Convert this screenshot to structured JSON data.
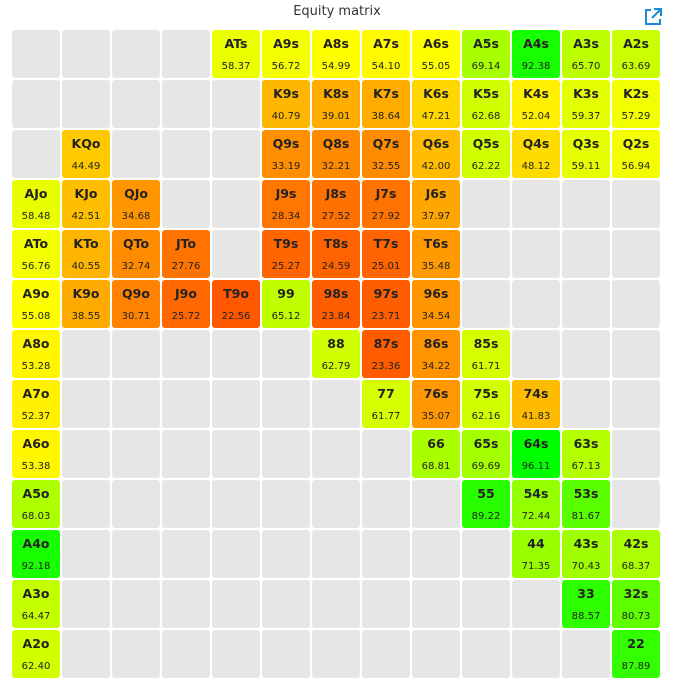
{
  "title": "Equity matrix",
  "export_icon": "external-link-icon",
  "colors": {
    "empty": "#e6e6e6",
    "text": "#222222"
  },
  "chart_data": {
    "type": "heatmap",
    "title": "Equity matrix",
    "ranks": [
      "A",
      "K",
      "Q",
      "J",
      "T",
      "9",
      "8",
      "7",
      "6",
      "5",
      "4",
      "3",
      "2"
    ],
    "cells": [
      {
        "hand": "ATs",
        "row": 0,
        "col": 4,
        "equity": 58.37
      },
      {
        "hand": "A9s",
        "row": 0,
        "col": 5,
        "equity": 56.72
      },
      {
        "hand": "A8s",
        "row": 0,
        "col": 6,
        "equity": 54.99
      },
      {
        "hand": "A7s",
        "row": 0,
        "col": 7,
        "equity": 54.1
      },
      {
        "hand": "A6s",
        "row": 0,
        "col": 8,
        "equity": 55.05
      },
      {
        "hand": "A5s",
        "row": 0,
        "col": 9,
        "equity": 69.14
      },
      {
        "hand": "A4s",
        "row": 0,
        "col": 10,
        "equity": 92.38
      },
      {
        "hand": "A3s",
        "row": 0,
        "col": 11,
        "equity": 65.7
      },
      {
        "hand": "A2s",
        "row": 0,
        "col": 12,
        "equity": 63.69
      },
      {
        "hand": "K9s",
        "row": 1,
        "col": 5,
        "equity": 40.79
      },
      {
        "hand": "K8s",
        "row": 1,
        "col": 6,
        "equity": 39.01
      },
      {
        "hand": "K7s",
        "row": 1,
        "col": 7,
        "equity": 38.64
      },
      {
        "hand": "K6s",
        "row": 1,
        "col": 8,
        "equity": 47.21
      },
      {
        "hand": "K5s",
        "row": 1,
        "col": 9,
        "equity": 62.68
      },
      {
        "hand": "K4s",
        "row": 1,
        "col": 10,
        "equity": 52.04
      },
      {
        "hand": "K3s",
        "row": 1,
        "col": 11,
        "equity": 59.37
      },
      {
        "hand": "K2s",
        "row": 1,
        "col": 12,
        "equity": 57.29
      },
      {
        "hand": "KQo",
        "row": 2,
        "col": 1,
        "equity": 44.49
      },
      {
        "hand": "Q9s",
        "row": 2,
        "col": 5,
        "equity": 33.19
      },
      {
        "hand": "Q8s",
        "row": 2,
        "col": 6,
        "equity": 32.21
      },
      {
        "hand": "Q7s",
        "row": 2,
        "col": 7,
        "equity": 32.55
      },
      {
        "hand": "Q6s",
        "row": 2,
        "col": 8,
        "equity": 42.0
      },
      {
        "hand": "Q5s",
        "row": 2,
        "col": 9,
        "equity": 62.22
      },
      {
        "hand": "Q4s",
        "row": 2,
        "col": 10,
        "equity": 48.12
      },
      {
        "hand": "Q3s",
        "row": 2,
        "col": 11,
        "equity": 59.11
      },
      {
        "hand": "Q2s",
        "row": 2,
        "col": 12,
        "equity": 56.94
      },
      {
        "hand": "AJo",
        "row": 3,
        "col": 0,
        "equity": 58.48
      },
      {
        "hand": "KJo",
        "row": 3,
        "col": 1,
        "equity": 42.51
      },
      {
        "hand": "QJo",
        "row": 3,
        "col": 2,
        "equity": 34.68
      },
      {
        "hand": "J9s",
        "row": 3,
        "col": 5,
        "equity": 28.34
      },
      {
        "hand": "J8s",
        "row": 3,
        "col": 6,
        "equity": 27.52
      },
      {
        "hand": "J7s",
        "row": 3,
        "col": 7,
        "equity": 27.92
      },
      {
        "hand": "J6s",
        "row": 3,
        "col": 8,
        "equity": 37.97
      },
      {
        "hand": "ATo",
        "row": 4,
        "col": 0,
        "equity": 56.76
      },
      {
        "hand": "KTo",
        "row": 4,
        "col": 1,
        "equity": 40.55
      },
      {
        "hand": "QTo",
        "row": 4,
        "col": 2,
        "equity": 32.74
      },
      {
        "hand": "JTo",
        "row": 4,
        "col": 3,
        "equity": 27.76
      },
      {
        "hand": "T9s",
        "row": 4,
        "col": 5,
        "equity": 25.27
      },
      {
        "hand": "T8s",
        "row": 4,
        "col": 6,
        "equity": 24.59
      },
      {
        "hand": "T7s",
        "row": 4,
        "col": 7,
        "equity": 25.01
      },
      {
        "hand": "T6s",
        "row": 4,
        "col": 8,
        "equity": 35.48
      },
      {
        "hand": "A9o",
        "row": 5,
        "col": 0,
        "equity": 55.08
      },
      {
        "hand": "K9o",
        "row": 5,
        "col": 1,
        "equity": 38.55
      },
      {
        "hand": "Q9o",
        "row": 5,
        "col": 2,
        "equity": 30.71
      },
      {
        "hand": "J9o",
        "row": 5,
        "col": 3,
        "equity": 25.72
      },
      {
        "hand": "T9o",
        "row": 5,
        "col": 4,
        "equity": 22.56
      },
      {
        "hand": "99",
        "row": 5,
        "col": 5,
        "equity": 65.12
      },
      {
        "hand": "98s",
        "row": 5,
        "col": 6,
        "equity": 23.84
      },
      {
        "hand": "97s",
        "row": 5,
        "col": 7,
        "equity": 23.71
      },
      {
        "hand": "96s",
        "row": 5,
        "col": 8,
        "equity": 34.54
      },
      {
        "hand": "A8o",
        "row": 6,
        "col": 0,
        "equity": 53.28
      },
      {
        "hand": "88",
        "row": 6,
        "col": 6,
        "equity": 62.79
      },
      {
        "hand": "87s",
        "row": 6,
        "col": 7,
        "equity": 23.36
      },
      {
        "hand": "86s",
        "row": 6,
        "col": 8,
        "equity": 34.22
      },
      {
        "hand": "85s",
        "row": 6,
        "col": 9,
        "equity": 61.71
      },
      {
        "hand": "A7o",
        "row": 7,
        "col": 0,
        "equity": 52.37
      },
      {
        "hand": "77",
        "row": 7,
        "col": 7,
        "equity": 61.77
      },
      {
        "hand": "76s",
        "row": 7,
        "col": 8,
        "equity": 35.07
      },
      {
        "hand": "75s",
        "row": 7,
        "col": 9,
        "equity": 62.16
      },
      {
        "hand": "74s",
        "row": 7,
        "col": 10,
        "equity": 41.83
      },
      {
        "hand": "A6o",
        "row": 8,
        "col": 0,
        "equity": 53.38
      },
      {
        "hand": "66",
        "row": 8,
        "col": 8,
        "equity": 68.81
      },
      {
        "hand": "65s",
        "row": 8,
        "col": 9,
        "equity": 69.69
      },
      {
        "hand": "64s",
        "row": 8,
        "col": 10,
        "equity": 96.11
      },
      {
        "hand": "63s",
        "row": 8,
        "col": 11,
        "equity": 67.13
      },
      {
        "hand": "A5o",
        "row": 9,
        "col": 0,
        "equity": 68.03
      },
      {
        "hand": "55",
        "row": 9,
        "col": 9,
        "equity": 89.22
      },
      {
        "hand": "54s",
        "row": 9,
        "col": 10,
        "equity": 72.44
      },
      {
        "hand": "53s",
        "row": 9,
        "col": 11,
        "equity": 81.67
      },
      {
        "hand": "A4o",
        "row": 10,
        "col": 0,
        "equity": 92.18
      },
      {
        "hand": "44",
        "row": 10,
        "col": 10,
        "equity": 71.35
      },
      {
        "hand": "43s",
        "row": 10,
        "col": 11,
        "equity": 70.43
      },
      {
        "hand": "42s",
        "row": 10,
        "col": 12,
        "equity": 68.37
      },
      {
        "hand": "A3o",
        "row": 11,
        "col": 0,
        "equity": 64.47
      },
      {
        "hand": "33",
        "row": 11,
        "col": 11,
        "equity": 88.57
      },
      {
        "hand": "32s",
        "row": 11,
        "col": 12,
        "equity": 80.73
      },
      {
        "hand": "A2o",
        "row": 12,
        "col": 0,
        "equity": 62.4
      },
      {
        "hand": "22",
        "row": 12,
        "col": 12,
        "equity": 87.89
      }
    ]
  }
}
